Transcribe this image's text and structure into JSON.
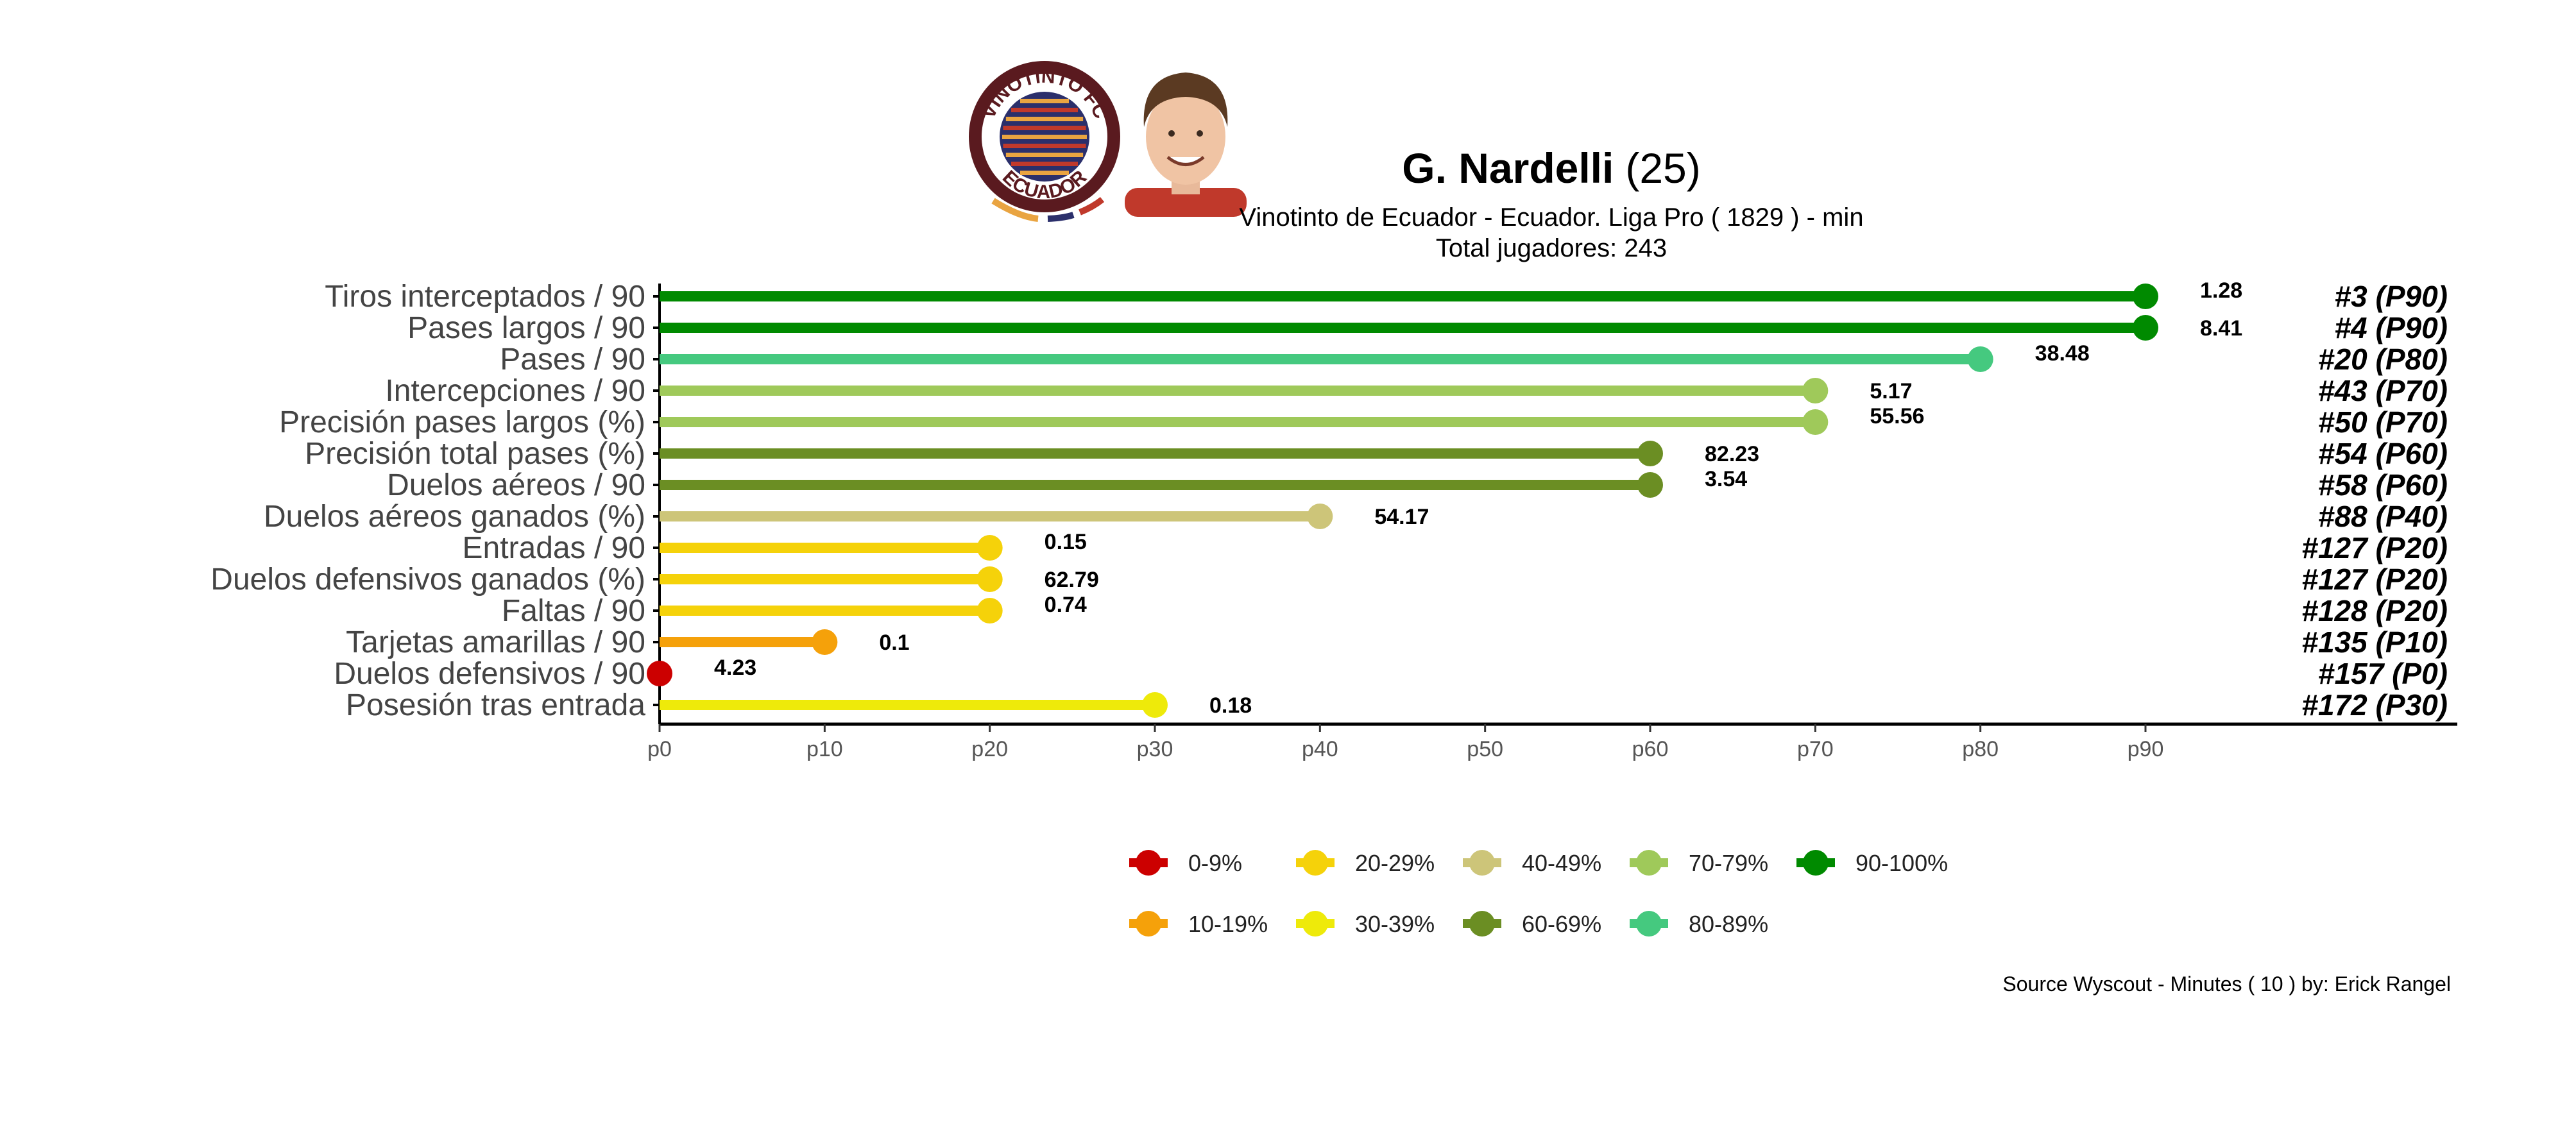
{
  "header": {
    "player_name": "G. Nardelli",
    "player_age": "(25)",
    "subtitle": "Vinotinto de Ecuador  -  Ecuador. Liga Pro  ( 1829 ) - min",
    "total_players": "Total jugadores:  243"
  },
  "logo": {
    "club_text_top": "VINOTINTO FC",
    "club_text_bottom": "ECUADOR",
    "ring_color": "#5a1a1f",
    "stripe_colors": [
      "#2b2f6b",
      "#e9a441",
      "#c0392b"
    ]
  },
  "photo": {
    "icon": "player-photo",
    "shirt_color": "#c0392b"
  },
  "footer": {
    "source": "Source Wyscout - Minutes ( 10 ) by: Erick Rangel"
  },
  "chart_data": {
    "type": "lollipop",
    "xlim": [
      0,
      90
    ],
    "x_ticks": [
      "p0",
      "p10",
      "p20",
      "p30",
      "p40",
      "p50",
      "p60",
      "p70",
      "p80",
      "p90"
    ],
    "tick_values": [
      0,
      10,
      20,
      30,
      40,
      50,
      60,
      70,
      80,
      90
    ],
    "rows": [
      {
        "label": "Tiros interceptados / 90",
        "percentile": 90,
        "value": "1.28",
        "rank": "#3 (P90)"
      },
      {
        "label": "Pases largos / 90",
        "percentile": 90,
        "value": "8.41",
        "rank": "#4 (P90)"
      },
      {
        "label": "Pases / 90",
        "percentile": 80,
        "value": "38.48",
        "rank": "#20 (P80)"
      },
      {
        "label": "Intercepciones / 90",
        "percentile": 70,
        "value": "5.17",
        "rank": "#43 (P70)"
      },
      {
        "label": "Precisión pases largos (%)",
        "percentile": 70,
        "value": "55.56",
        "rank": "#50 (P70)"
      },
      {
        "label": "Precisión total pases (%)",
        "percentile": 60,
        "value": "82.23",
        "rank": "#54 (P60)"
      },
      {
        "label": "Duelos aéreos / 90",
        "percentile": 60,
        "value": "3.54",
        "rank": "#58 (P60)"
      },
      {
        "label": "Duelos aéreos ganados (%)",
        "percentile": 40,
        "value": "54.17",
        "rank": "#88 (P40)"
      },
      {
        "label": "Entradas / 90",
        "percentile": 20,
        "value": "0.15",
        "rank": "#127 (P20)"
      },
      {
        "label": "Duelos defensivos ganados (%)",
        "percentile": 20,
        "value": "62.79",
        "rank": "#127 (P20)"
      },
      {
        "label": "Faltas / 90",
        "percentile": 20,
        "value": "0.74",
        "rank": "#128 (P20)"
      },
      {
        "label": "Tarjetas amarillas / 90",
        "percentile": 10,
        "value": "0.1",
        "rank": "#135 (P10)"
      },
      {
        "label": "Duelos defensivos / 90",
        "percentile": 0,
        "value": "4.23",
        "rank": "#157 (P0)"
      },
      {
        "label": "Posesión tras entrada",
        "percentile": 30,
        "value": "0.18",
        "rank": "#172 (P30)"
      }
    ],
    "legend": [
      {
        "label": "0-9%",
        "color": "#cc0000"
      },
      {
        "label": "10-19%",
        "color": "#f5a10a"
      },
      {
        "label": "20-29%",
        "color": "#f5d20a"
      },
      {
        "label": "30-39%",
        "color": "#eeea0a"
      },
      {
        "label": "40-49%",
        "color": "#cdc579"
      },
      {
        "label": "60-69%",
        "color": "#6b8e23"
      },
      {
        "label": "70-79%",
        "color": "#9fc95a"
      },
      {
        "label": "80-89%",
        "color": "#45c97f"
      },
      {
        "label": "90-100%",
        "color": "#008a00"
      }
    ]
  }
}
